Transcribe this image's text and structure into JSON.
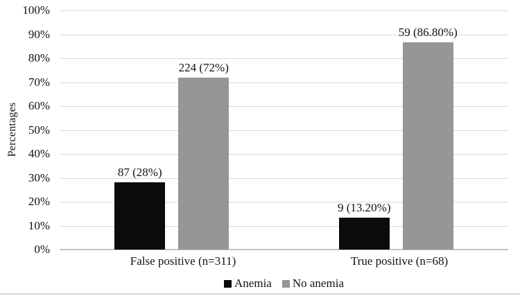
{
  "figure": {
    "background": "#ffffff",
    "bottom_border_color": "#d4d4d4"
  },
  "chart_data": {
    "type": "bar",
    "title": "",
    "xlabel": "",
    "ylabel": "Percentages",
    "ylim": [
      0,
      100
    ],
    "y_ticks": [
      "0%",
      "10%",
      "20%",
      "30%",
      "40%",
      "50%",
      "60%",
      "70%",
      "80%",
      "90%",
      "100%"
    ],
    "categories": [
      "False positive (n=311)",
      "True positive (n=68)"
    ],
    "series": [
      {
        "name": "Anemia",
        "color": "#0b0b0b",
        "values": [
          28,
          13.2
        ],
        "counts": [
          87,
          9
        ],
        "data_labels": [
          "87 (28%)",
          "9 (13.20%)"
        ]
      },
      {
        "name": "No anemia",
        "color": "#969696",
        "values": [
          72,
          86.8
        ],
        "counts": [
          224,
          59
        ],
        "data_labels": [
          "224 (72%)",
          "59 (86.80%)"
        ]
      }
    ],
    "grid": "horizontal",
    "gridline_color": "#d9d9d9",
    "axisline_color": "#c3c3c3",
    "legend_position": "bottom"
  },
  "legend": {
    "items": [
      {
        "label": "Anemia",
        "color": "#0b0b0b"
      },
      {
        "label": "No anemia",
        "color": "#969696"
      }
    ]
  }
}
